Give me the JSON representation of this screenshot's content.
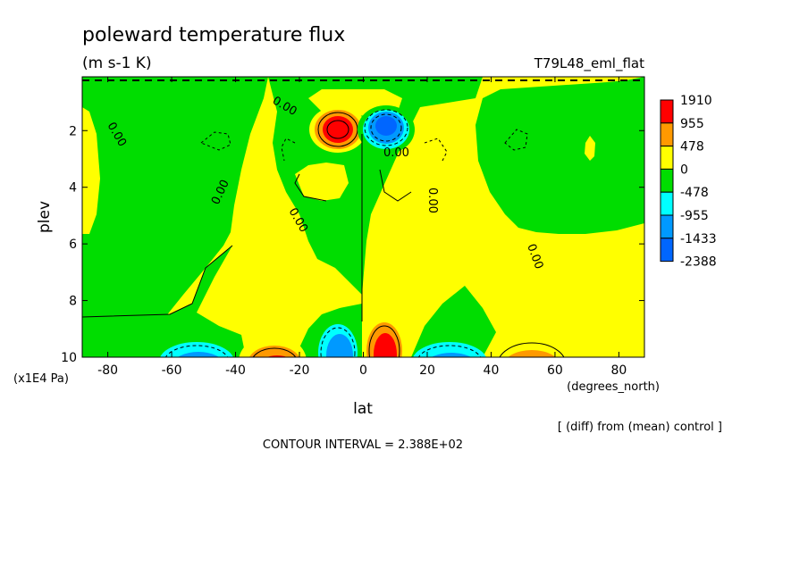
{
  "chart_data": {
    "type": "heatmap",
    "title": "poleward temperature flux",
    "units": "(m s-1 K)",
    "run_label": "T79L48_eml_flat",
    "xlabel": "lat",
    "xunits": "(degrees_north)",
    "ylabel": "plev",
    "yunits": "(x1E4 Pa)",
    "xlim": [
      -88,
      88
    ],
    "ylim": [
      0.1,
      10
    ],
    "y_inverted": true,
    "x_ticks": [
      -80,
      -60,
      -40,
      -20,
      0,
      20,
      40,
      60,
      80
    ],
    "x_tick_labels": [
      "-80",
      "-60",
      "-40",
      "-20",
      "0",
      "20",
      "40",
      "60",
      "80"
    ],
    "y_ticks": [
      2,
      4,
      6,
      8,
      10
    ],
    "y_tick_labels": [
      "2",
      "4",
      "6",
      "8",
      "10"
    ],
    "colorbar": {
      "labels": [
        "1910",
        "955",
        "478",
        "0",
        "-478",
        "-955",
        "-1433",
        "-2388"
      ],
      "colors": [
        "#ff0000",
        "#ff9900",
        "#ffff00",
        "#00dd00",
        "#00ffff",
        "#0099ff",
        "#0066ff"
      ]
    },
    "contour_label": "0.00",
    "contour_interval_text": "CONTOUR INTERVAL = 2.388E+02",
    "note": "[ (diff) from (mean) control ]",
    "colors": {
      "pos_strong": "#ff0000",
      "pos_mid": "#ff9900",
      "pos_weak": "#ffff00",
      "neg_weak": "#00dd00",
      "neg_mid": "#00ffff",
      "neg_strong": "#0099ff",
      "neg_max": "#0066ff"
    },
    "features": [
      {
        "lat": -7,
        "plev": 2.0,
        "value": 1910
      },
      {
        "lat": 7,
        "plev": 1.9,
        "value": -2388
      },
      {
        "lat": -52,
        "plev": 9.7,
        "value": -955
      },
      {
        "lat": -30,
        "plev": 9.6,
        "value": 955
      },
      {
        "lat": -10,
        "plev": 9.6,
        "value": -955
      },
      {
        "lat": 7,
        "plev": 9.6,
        "value": 1910
      },
      {
        "lat": 28,
        "plev": 9.6,
        "value": -955
      },
      {
        "lat": 52,
        "plev": 9.7,
        "value": 955
      }
    ]
  }
}
